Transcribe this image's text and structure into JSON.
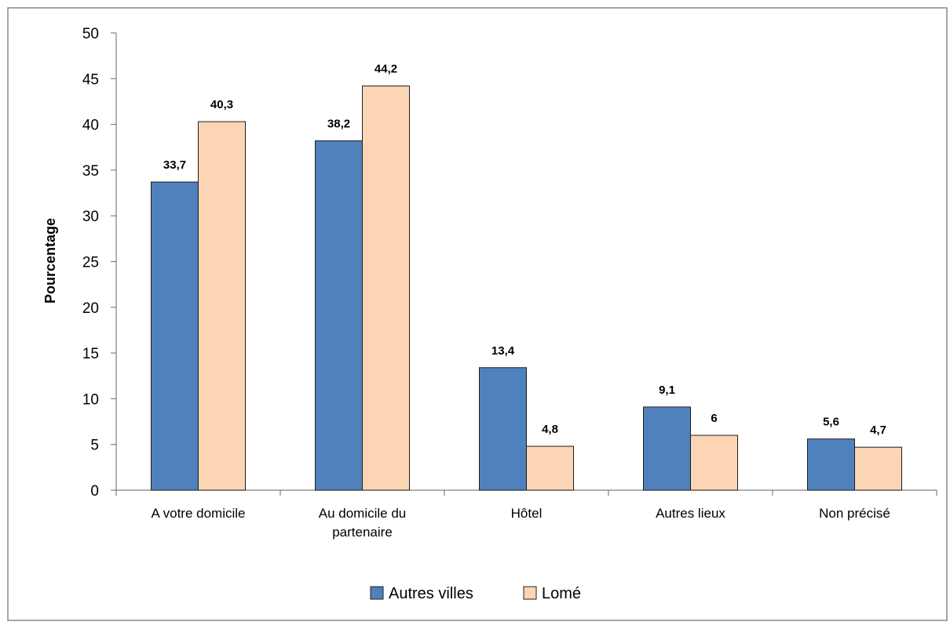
{
  "chart_data": {
    "type": "bar",
    "title": "",
    "xlabel": "",
    "ylabel": "Pourcentage",
    "ylim": [
      0,
      50
    ],
    "yticks": [
      0,
      5,
      10,
      15,
      20,
      25,
      30,
      35,
      40,
      45,
      50
    ],
    "grid": false,
    "legend_position": "bottom",
    "categories": [
      [
        "A votre domicile"
      ],
      [
        "Au domicile du",
        "partenaire"
      ],
      [
        "Hôtel"
      ],
      [
        "Autres lieux"
      ],
      [
        "Non précisé"
      ]
    ],
    "series": [
      {
        "name": "Autres villes",
        "color": "#4f81bd",
        "values": [
          33.7,
          38.2,
          13.4,
          9.1,
          5.6
        ],
        "labels": [
          "33,7",
          "38,2",
          "13,4",
          "9,1",
          "5,6"
        ]
      },
      {
        "name": "Lomé",
        "color": "#fcd5b5",
        "values": [
          40.3,
          44.2,
          4.8,
          6,
          4.7
        ],
        "labels": [
          "40,3",
          "44,2",
          "4,8",
          "6",
          "4,7"
        ]
      }
    ]
  }
}
